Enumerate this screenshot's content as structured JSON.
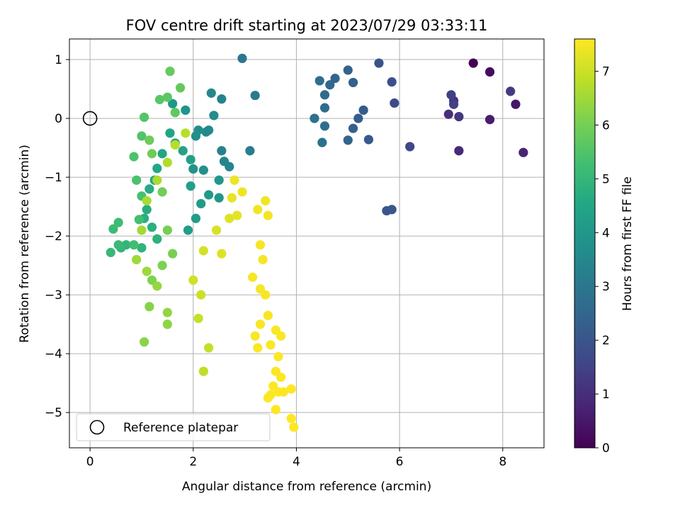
{
  "chart_data": {
    "type": "scatter",
    "title": "FOV centre drift starting at 2023/07/29 03:33:11",
    "xlabel": "Angular distance from reference (arcmin)",
    "ylabel": "Rotation from reference (arcmin)",
    "xlim": [
      -0.4,
      8.8
    ],
    "ylim": [
      -5.6,
      1.35
    ],
    "xticks": [
      0,
      2,
      4,
      6,
      8
    ],
    "yticks": [
      1,
      0,
      -1,
      -2,
      -3,
      -4,
      -5
    ],
    "grid": true,
    "colormap": "viridis",
    "colorbar": {
      "label": "Hours from first FF file",
      "min": 0,
      "max": 7.6,
      "ticks": [
        0,
        1,
        2,
        3,
        4,
        5,
        6,
        7
      ]
    },
    "reference": {
      "x": 0,
      "y": 0,
      "label": "Reference platepar"
    },
    "legend_loc": "lower left",
    "points": [
      [
        7.43,
        0.94,
        0.0
      ],
      [
        7.75,
        0.79,
        0.25
      ],
      [
        8.25,
        0.24,
        0.45
      ],
      [
        7.75,
        -0.02,
        0.6
      ],
      [
        8.4,
        -0.58,
        0.75
      ],
      [
        7.15,
        -0.55,
        0.9
      ],
      [
        6.95,
        0.07,
        1.0
      ],
      [
        7.05,
        0.3,
        1.1
      ],
      [
        7.15,
        0.03,
        1.2
      ],
      [
        8.15,
        0.46,
        1.3
      ],
      [
        7.0,
        0.4,
        1.4
      ],
      [
        7.05,
        0.24,
        1.45
      ],
      [
        6.2,
        -0.48,
        1.6
      ],
      [
        5.9,
        0.26,
        1.7
      ],
      [
        5.85,
        0.62,
        1.8
      ],
      [
        5.6,
        0.94,
        1.9
      ],
      [
        5.75,
        -1.57,
        2.0
      ],
      [
        5.85,
        -1.55,
        2.05
      ],
      [
        5.4,
        -0.36,
        2.1
      ],
      [
        5.3,
        0.14,
        2.2
      ],
      [
        5.2,
        0.0,
        2.25
      ],
      [
        5.1,
        -0.17,
        2.3
      ],
      [
        5.1,
        0.61,
        2.35
      ],
      [
        5.0,
        0.82,
        2.4
      ],
      [
        5.0,
        -0.37,
        2.45
      ],
      [
        4.75,
        0.68,
        2.5
      ],
      [
        4.65,
        0.57,
        2.55
      ],
      [
        4.55,
        0.4,
        2.6
      ],
      [
        4.55,
        0.18,
        2.65
      ],
      [
        4.55,
        -0.13,
        2.7
      ],
      [
        4.45,
        0.64,
        2.75
      ],
      [
        4.5,
        -0.41,
        2.8
      ],
      [
        4.35,
        0.0,
        2.85
      ],
      [
        2.95,
        1.02,
        3.0
      ],
      [
        3.2,
        0.39,
        3.1
      ],
      [
        3.1,
        -0.55,
        3.2
      ],
      [
        2.55,
        -0.55,
        3.3
      ],
      [
        2.55,
        0.33,
        3.35
      ],
      [
        2.6,
        -0.73,
        3.4
      ],
      [
        2.7,
        -0.82,
        3.45
      ],
      [
        2.35,
        0.43,
        3.5
      ],
      [
        2.25,
        -0.23,
        3.55
      ],
      [
        2.3,
        -0.2,
        3.6
      ],
      [
        2.4,
        0.05,
        3.65
      ],
      [
        2.1,
        -0.2,
        3.7
      ],
      [
        2.05,
        -0.3,
        3.75
      ],
      [
        2.2,
        -0.88,
        3.8
      ],
      [
        2.0,
        -0.86,
        3.85
      ],
      [
        1.85,
        0.14,
        3.9
      ],
      [
        1.6,
        0.25,
        3.95
      ],
      [
        2.5,
        -1.05,
        3.95
      ],
      [
        2.5,
        -1.35,
        4.0
      ],
      [
        2.3,
        -1.3,
        4.05
      ],
      [
        2.15,
        -1.45,
        4.1
      ],
      [
        2.05,
        -1.7,
        4.15
      ],
      [
        1.9,
        -1.9,
        4.2
      ],
      [
        1.95,
        -1.15,
        4.25
      ],
      [
        1.95,
        -0.7,
        4.3
      ],
      [
        1.8,
        -0.55,
        4.35
      ],
      [
        1.65,
        -0.42,
        4.4
      ],
      [
        1.55,
        -0.25,
        4.45
      ],
      [
        1.4,
        -0.6,
        4.5
      ],
      [
        1.3,
        -0.85,
        4.55
      ],
      [
        1.25,
        -1.05,
        4.6
      ],
      [
        1.15,
        -1.2,
        4.65
      ],
      [
        1.1,
        -1.55,
        4.7
      ],
      [
        1.05,
        -1.7,
        4.75
      ],
      [
        1.2,
        -1.85,
        4.8
      ],
      [
        1.3,
        -2.05,
        4.85
      ],
      [
        1.0,
        -2.2,
        4.9
      ],
      [
        0.7,
        -2.15,
        4.95
      ],
      [
        0.6,
        -2.2,
        5.0
      ],
      [
        0.4,
        -2.28,
        5.05
      ],
      [
        0.55,
        -2.15,
        5.1
      ],
      [
        0.45,
        -1.88,
        5.15
      ],
      [
        0.55,
        -1.77,
        5.2
      ],
      [
        0.85,
        -2.15,
        5.25
      ],
      [
        0.95,
        -1.72,
        5.3
      ],
      [
        1.0,
        -1.32,
        5.35
      ],
      [
        0.9,
        -1.05,
        5.4
      ],
      [
        0.85,
        -0.65,
        5.45
      ],
      [
        1.0,
        -0.3,
        5.5
      ],
      [
        1.05,
        0.02,
        5.55
      ],
      [
        1.35,
        0.32,
        5.6
      ],
      [
        1.5,
        0.36,
        5.65
      ],
      [
        1.65,
        0.1,
        5.7
      ],
      [
        1.75,
        0.52,
        5.75
      ],
      [
        1.55,
        0.8,
        5.8
      ],
      [
        1.15,
        -0.37,
        5.85
      ],
      [
        1.2,
        -0.6,
        5.9
      ],
      [
        1.4,
        -1.25,
        5.95
      ],
      [
        1.5,
        -1.9,
        6.0
      ],
      [
        1.6,
        -2.3,
        6.05
      ],
      [
        1.4,
        -2.5,
        6.1
      ],
      [
        1.2,
        -2.75,
        6.15
      ],
      [
        1.15,
        -3.2,
        6.2
      ],
      [
        1.05,
        -3.8,
        6.25
      ],
      [
        1.5,
        -3.5,
        6.3
      ],
      [
        1.5,
        -3.3,
        6.35
      ],
      [
        1.3,
        -2.85,
        6.4
      ],
      [
        1.1,
        -2.6,
        6.45
      ],
      [
        0.9,
        -2.4,
        6.5
      ],
      [
        1.0,
        -1.9,
        6.55
      ],
      [
        1.1,
        -1.4,
        6.6
      ],
      [
        1.3,
        -1.05,
        6.65
      ],
      [
        1.5,
        -0.75,
        6.7
      ],
      [
        1.65,
        -0.45,
        6.75
      ],
      [
        1.85,
        -0.25,
        6.8
      ],
      [
        2.2,
        -4.3,
        6.85
      ],
      [
        2.3,
        -3.9,
        6.9
      ],
      [
        2.1,
        -3.4,
        6.95
      ],
      [
        2.15,
        -3.0,
        7.0
      ],
      [
        2.0,
        -2.75,
        7.05
      ],
      [
        2.2,
        -2.25,
        7.1
      ],
      [
        2.45,
        -1.9,
        7.15
      ],
      [
        2.55,
        -2.3,
        7.2
      ],
      [
        2.7,
        -1.7,
        7.25
      ],
      [
        2.85,
        -1.65,
        7.3
      ],
      [
        2.75,
        -1.35,
        7.35
      ],
      [
        2.8,
        -1.05,
        7.4
      ],
      [
        2.95,
        -1.25,
        7.42
      ],
      [
        3.25,
        -1.55,
        7.44
      ],
      [
        3.4,
        -1.4,
        7.46
      ],
      [
        3.45,
        -1.65,
        7.48
      ],
      [
        3.3,
        -2.15,
        7.5
      ],
      [
        3.35,
        -2.4,
        7.5
      ],
      [
        3.15,
        -2.7,
        7.52
      ],
      [
        3.3,
        -2.9,
        7.52
      ],
      [
        3.4,
        -3.0,
        7.54
      ],
      [
        3.45,
        -3.35,
        7.54
      ],
      [
        3.3,
        -3.5,
        7.55
      ],
      [
        3.2,
        -3.7,
        7.55
      ],
      [
        3.25,
        -3.9,
        7.56
      ],
      [
        3.5,
        -3.85,
        7.56
      ],
      [
        3.6,
        -3.6,
        7.57
      ],
      [
        3.7,
        -3.7,
        7.57
      ],
      [
        3.65,
        -4.05,
        7.58
      ],
      [
        3.6,
        -4.3,
        7.58
      ],
      [
        3.7,
        -4.4,
        7.58
      ],
      [
        3.55,
        -4.55,
        7.59
      ],
      [
        3.5,
        -4.7,
        7.59
      ],
      [
        3.65,
        -4.65,
        7.59
      ],
      [
        3.45,
        -4.75,
        7.6
      ],
      [
        3.75,
        -4.65,
        7.6
      ],
      [
        3.9,
        -4.6,
        7.6
      ],
      [
        3.6,
        -4.95,
        7.6
      ],
      [
        3.9,
        -5.1,
        7.6
      ],
      [
        3.95,
        -5.25,
        7.6
      ]
    ]
  }
}
